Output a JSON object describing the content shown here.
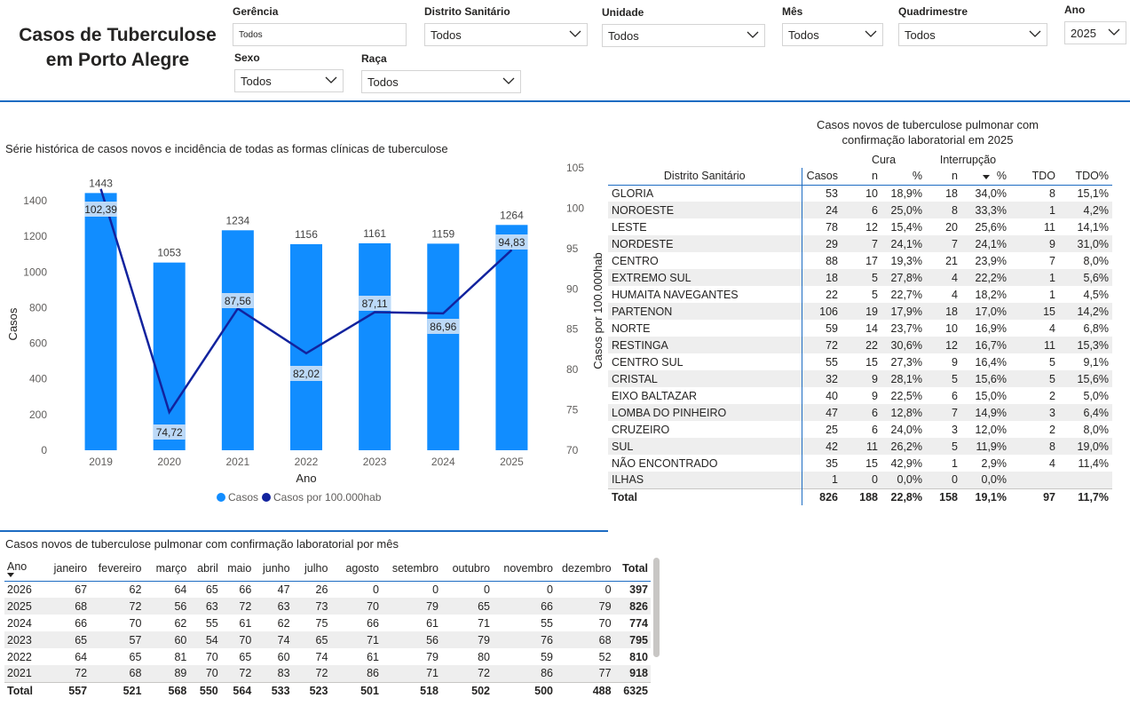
{
  "header": {
    "title_line1": "Casos de Tuberculose",
    "title_line2": "em Porto Alegre"
  },
  "filters": {
    "gerencia": {
      "label": "Gerência",
      "value": "Todos"
    },
    "distrito": {
      "label": "Distrito Sanitário",
      "value": "Todos"
    },
    "unidade": {
      "label": "Unidade",
      "value": "Todos"
    },
    "mes": {
      "label": "Mês",
      "value": "Todos"
    },
    "quadrimestre": {
      "label": "Quadrimestre",
      "value": "Todos"
    },
    "ano": {
      "label": "Ano",
      "value": "2025"
    },
    "sexo": {
      "label": "Sexo",
      "value": "Todos"
    },
    "raca": {
      "label": "Raça",
      "value": "Todos"
    }
  },
  "colors": {
    "accent": "#1d6cc2",
    "bar": "#118dff",
    "line": "#12239e",
    "label_bg": "#bcd9f7"
  },
  "chart_data": {
    "type": "bar",
    "title": "Série histórica de casos novos e incidência de todas as formas clínicas de tuberculose",
    "xlabel": "Ano",
    "ylabel": "Casos",
    "y2label": "Casos por 100.000hab",
    "categories": [
      "2019",
      "2020",
      "2021",
      "2022",
      "2023",
      "2024",
      "2025"
    ],
    "series": [
      {
        "name": "Casos",
        "type": "bar",
        "axis": "left",
        "values": [
          1443,
          1053,
          1234,
          1156,
          1161,
          1159,
          1264
        ]
      },
      {
        "name": "Casos por 100.000hab",
        "type": "line",
        "axis": "right",
        "values": [
          102.39,
          74.72,
          87.56,
          82.02,
          87.11,
          86.96,
          94.83
        ]
      }
    ],
    "line_labels": [
      "102,39",
      "74,72",
      "87,56",
      "82,02",
      "87,11",
      "86,96",
      "94,83"
    ],
    "ylim": [
      0,
      1400
    ],
    "y_ticks": [
      0,
      200,
      400,
      600,
      800,
      1000,
      1200,
      1400
    ],
    "y2lim": [
      70,
      105
    ],
    "y2_ticks": [
      70,
      75,
      80,
      85,
      90,
      95,
      100,
      105
    ],
    "legend": "bottom-center",
    "grid": false
  },
  "district_table": {
    "title_line1": "Casos novos de tuberculose pulmonar com",
    "title_line2": "confirmação laboratorial em 2025",
    "group_headers": {
      "cura": "Cura",
      "interrupcao": "Interrupção"
    },
    "headers": [
      "Distrito Sanitário",
      "Casos",
      "n",
      "%",
      "n",
      "%",
      "TDO",
      "TDO%"
    ],
    "rows": [
      [
        "GLORIA",
        "53",
        "10",
        "18,9%",
        "18",
        "34,0%",
        "8",
        "15,1%"
      ],
      [
        "NOROESTE",
        "24",
        "6",
        "25,0%",
        "8",
        "33,3%",
        "1",
        "4,2%"
      ],
      [
        "LESTE",
        "78",
        "12",
        "15,4%",
        "20",
        "25,6%",
        "11",
        "14,1%"
      ],
      [
        "NORDESTE",
        "29",
        "7",
        "24,1%",
        "7",
        "24,1%",
        "9",
        "31,0%"
      ],
      [
        "CENTRO",
        "88",
        "17",
        "19,3%",
        "21",
        "23,9%",
        "7",
        "8,0%"
      ],
      [
        "EXTREMO SUL",
        "18",
        "5",
        "27,8%",
        "4",
        "22,2%",
        "1",
        "5,6%"
      ],
      [
        "HUMAITA NAVEGANTES",
        "22",
        "5",
        "22,7%",
        "4",
        "18,2%",
        "1",
        "4,5%"
      ],
      [
        "PARTENON",
        "106",
        "19",
        "17,9%",
        "18",
        "17,0%",
        "15",
        "14,2%"
      ],
      [
        "NORTE",
        "59",
        "14",
        "23,7%",
        "10",
        "16,9%",
        "4",
        "6,8%"
      ],
      [
        "RESTINGA",
        "72",
        "22",
        "30,6%",
        "12",
        "16,7%",
        "11",
        "15,3%"
      ],
      [
        "CENTRO SUL",
        "55",
        "15",
        "27,3%",
        "9",
        "16,4%",
        "5",
        "9,1%"
      ],
      [
        "CRISTAL",
        "32",
        "9",
        "28,1%",
        "5",
        "15,6%",
        "5",
        "15,6%"
      ],
      [
        "EIXO BALTAZAR",
        "40",
        "9",
        "22,5%",
        "6",
        "15,0%",
        "2",
        "5,0%"
      ],
      [
        "LOMBA DO PINHEIRO",
        "47",
        "6",
        "12,8%",
        "7",
        "14,9%",
        "3",
        "6,4%"
      ],
      [
        "CRUZEIRO",
        "25",
        "6",
        "24,0%",
        "3",
        "12,0%",
        "2",
        "8,0%"
      ],
      [
        "SUL",
        "42",
        "11",
        "26,2%",
        "5",
        "11,9%",
        "8",
        "19,0%"
      ],
      [
        "NÃO ENCONTRADO",
        "35",
        "15",
        "42,9%",
        "1",
        "2,9%",
        "4",
        "11,4%"
      ],
      [
        "ILHAS",
        "1",
        "0",
        "0,0%",
        "0",
        "0,0%",
        "",
        ""
      ]
    ],
    "total": [
      "Total",
      "826",
      "188",
      "22,8%",
      "158",
      "19,1%",
      "97",
      "11,7%"
    ]
  },
  "month_table": {
    "title": "Casos novos de tuberculose pulmonar com confirmação laboratorial por mês",
    "headers": [
      "Ano",
      "janeiro",
      "fevereiro",
      "março",
      "abril",
      "maio",
      "junho",
      "julho",
      "agosto",
      "setembro",
      "outubro",
      "novembro",
      "dezembro",
      "Total"
    ],
    "rows": [
      [
        "2026",
        "67",
        "62",
        "64",
        "65",
        "66",
        "47",
        "26",
        "0",
        "0",
        "0",
        "0",
        "0",
        "397"
      ],
      [
        "2025",
        "68",
        "72",
        "56",
        "63",
        "72",
        "63",
        "73",
        "70",
        "79",
        "65",
        "66",
        "79",
        "826"
      ],
      [
        "2024",
        "66",
        "70",
        "62",
        "55",
        "61",
        "62",
        "75",
        "66",
        "61",
        "71",
        "55",
        "70",
        "774"
      ],
      [
        "2023",
        "65",
        "57",
        "60",
        "54",
        "70",
        "74",
        "65",
        "71",
        "56",
        "79",
        "76",
        "68",
        "795"
      ],
      [
        "2022",
        "64",
        "65",
        "81",
        "70",
        "65",
        "60",
        "74",
        "61",
        "79",
        "80",
        "59",
        "52",
        "810"
      ],
      [
        "2021",
        "72",
        "68",
        "89",
        "70",
        "72",
        "83",
        "72",
        "86",
        "71",
        "72",
        "86",
        "77",
        "918"
      ]
    ],
    "total": [
      "Total",
      "557",
      "521",
      "568",
      "550",
      "564",
      "533",
      "523",
      "501",
      "518",
      "502",
      "500",
      "488",
      "6325"
    ]
  }
}
